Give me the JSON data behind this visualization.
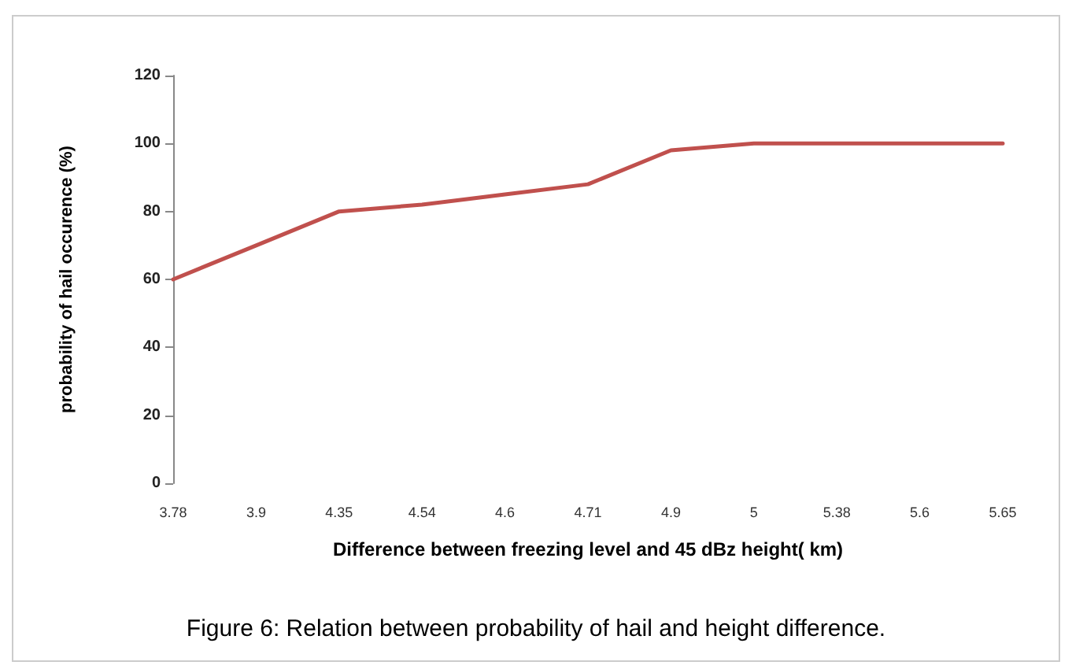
{
  "chart_data": {
    "type": "line",
    "xlabel": "Difference between freezing level and 45 dBz height( km)",
    "ylabel": "probability of hail occurence (%)",
    "categories": [
      "3.78",
      "3.9",
      "4.35",
      "4.54",
      "4.6",
      "4.71",
      "4.9",
      "5",
      "5.38",
      "5.6",
      "5.65"
    ],
    "series": [
      {
        "color": "#c0504d",
        "values": [
          60,
          70,
          80,
          82,
          85,
          88,
          98,
          100,
          100,
          100,
          100
        ]
      }
    ],
    "ylim": [
      0,
      120
    ],
    "yticks": [
      0,
      20,
      40,
      60,
      80,
      100,
      120
    ],
    "grid": false,
    "marker": "none",
    "line_style": "solid",
    "annotations": [
      "Figure 6: Relation between probability of hail and height difference."
    ]
  }
}
